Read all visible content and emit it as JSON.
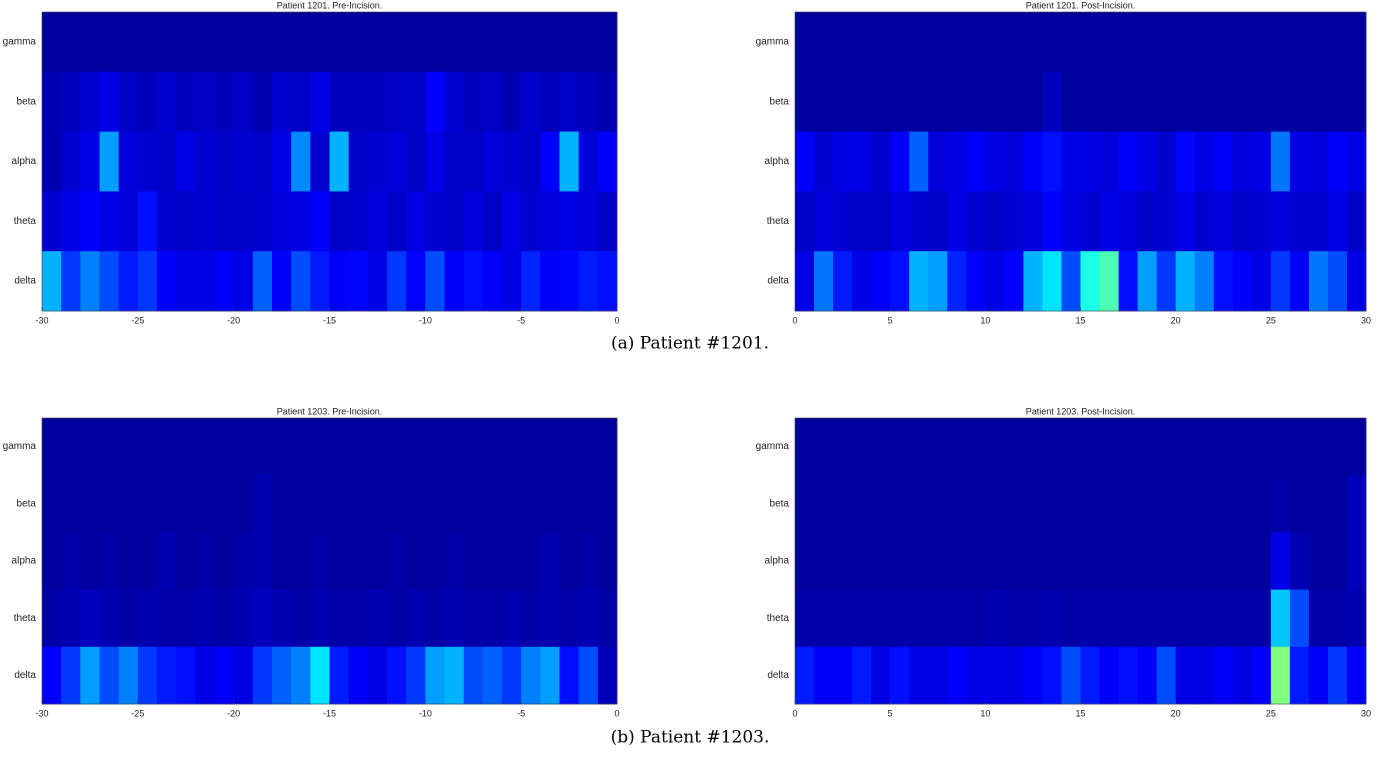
{
  "chart_data": [
    {
      "type": "heatmap",
      "title": "Patient 1201. Pre-Incision.",
      "colormap": "jet",
      "clim": [
        0,
        1
      ],
      "categories": [
        "gamma",
        "beta",
        "alpha",
        "theta",
        "delta"
      ],
      "xlim": [
        -30,
        0
      ],
      "xticks": [
        -30,
        -25,
        -20,
        -15,
        -10,
        -5,
        0
      ],
      "values": [
        [
          0.03,
          0.03,
          0.03,
          0.03,
          0.03,
          0.03,
          0.03,
          0.03,
          0.03,
          0.03,
          0.03,
          0.03,
          0.03,
          0.03,
          0.03,
          0.03,
          0.03,
          0.03,
          0.03,
          0.03,
          0.03,
          0.03,
          0.03,
          0.03,
          0.03,
          0.03,
          0.03,
          0.03,
          0.03,
          0.03
        ],
        [
          0.05,
          0.06,
          0.08,
          0.1,
          0.07,
          0.06,
          0.08,
          0.06,
          0.07,
          0.06,
          0.07,
          0.05,
          0.08,
          0.07,
          0.1,
          0.06,
          0.06,
          0.06,
          0.07,
          0.07,
          0.12,
          0.08,
          0.06,
          0.07,
          0.05,
          0.08,
          0.06,
          0.07,
          0.06,
          0.05
        ],
        [
          0.05,
          0.08,
          0.1,
          0.28,
          0.09,
          0.08,
          0.07,
          0.1,
          0.08,
          0.07,
          0.08,
          0.07,
          0.1,
          0.26,
          0.08,
          0.3,
          0.07,
          0.08,
          0.09,
          0.07,
          0.1,
          0.07,
          0.07,
          0.09,
          0.08,
          0.07,
          0.12,
          0.3,
          0.09,
          0.12
        ],
        [
          0.08,
          0.1,
          0.12,
          0.1,
          0.09,
          0.14,
          0.08,
          0.07,
          0.08,
          0.07,
          0.07,
          0.08,
          0.09,
          0.1,
          0.12,
          0.07,
          0.08,
          0.09,
          0.07,
          0.1,
          0.08,
          0.07,
          0.09,
          0.07,
          0.1,
          0.08,
          0.09,
          0.1,
          0.09,
          0.07
        ],
        [
          0.3,
          0.18,
          0.25,
          0.2,
          0.15,
          0.18,
          0.12,
          0.1,
          0.1,
          0.12,
          0.1,
          0.22,
          0.12,
          0.2,
          0.15,
          0.12,
          0.13,
          0.1,
          0.18,
          0.12,
          0.2,
          0.12,
          0.14,
          0.12,
          0.1,
          0.16,
          0.12,
          0.13,
          0.15,
          0.14
        ]
      ]
    },
    {
      "type": "heatmap",
      "title": "Patient 1201. Post-Incision.",
      "colormap": "jet",
      "clim": [
        0,
        1
      ],
      "categories": [
        "gamma",
        "beta",
        "alpha",
        "theta",
        "delta"
      ],
      "xlim": [
        0,
        30
      ],
      "xticks": [
        0,
        5,
        10,
        15,
        20,
        25,
        30
      ],
      "values": [
        [
          0.03,
          0.03,
          0.03,
          0.03,
          0.03,
          0.03,
          0.03,
          0.03,
          0.03,
          0.03,
          0.03,
          0.03,
          0.03,
          0.03,
          0.03,
          0.03,
          0.03,
          0.03,
          0.03,
          0.03,
          0.03,
          0.03,
          0.03,
          0.03,
          0.03,
          0.03,
          0.03,
          0.03,
          0.03,
          0.03
        ],
        [
          0.03,
          0.03,
          0.03,
          0.03,
          0.03,
          0.03,
          0.03,
          0.03,
          0.03,
          0.03,
          0.03,
          0.03,
          0.03,
          0.06,
          0.03,
          0.03,
          0.03,
          0.03,
          0.03,
          0.03,
          0.03,
          0.03,
          0.03,
          0.03,
          0.03,
          0.03,
          0.03,
          0.03,
          0.03,
          0.03
        ],
        [
          0.12,
          0.08,
          0.1,
          0.1,
          0.08,
          0.12,
          0.22,
          0.09,
          0.1,
          0.12,
          0.1,
          0.09,
          0.12,
          0.14,
          0.1,
          0.1,
          0.09,
          0.12,
          0.1,
          0.08,
          0.13,
          0.1,
          0.12,
          0.09,
          0.1,
          0.24,
          0.1,
          0.09,
          0.12,
          0.1
        ],
        [
          0.07,
          0.09,
          0.08,
          0.07,
          0.07,
          0.09,
          0.08,
          0.07,
          0.1,
          0.08,
          0.07,
          0.08,
          0.09,
          0.12,
          0.1,
          0.08,
          0.1,
          0.09,
          0.07,
          0.08,
          0.1,
          0.08,
          0.09,
          0.07,
          0.08,
          0.09,
          0.08,
          0.08,
          0.1,
          0.07
        ],
        [
          0.1,
          0.24,
          0.15,
          0.1,
          0.12,
          0.14,
          0.3,
          0.28,
          0.16,
          0.12,
          0.1,
          0.12,
          0.3,
          0.35,
          0.2,
          0.4,
          0.45,
          0.14,
          0.28,
          0.18,
          0.3,
          0.25,
          0.14,
          0.12,
          0.1,
          0.18,
          0.12,
          0.24,
          0.2,
          0.1
        ]
      ]
    },
    {
      "type": "heatmap",
      "title": "Patient 1203. Pre-Incision.",
      "colormap": "jet",
      "clim": [
        0,
        1
      ],
      "categories": [
        "gamma",
        "beta",
        "alpha",
        "theta",
        "delta"
      ],
      "xlim": [
        -30,
        0
      ],
      "xticks": [
        -30,
        -25,
        -20,
        -15,
        -10,
        -5,
        0
      ],
      "values": [
        [
          0.03,
          0.03,
          0.03,
          0.03,
          0.03,
          0.03,
          0.03,
          0.03,
          0.03,
          0.03,
          0.03,
          0.03,
          0.03,
          0.03,
          0.03,
          0.03,
          0.03,
          0.03,
          0.03,
          0.03,
          0.03,
          0.03,
          0.03,
          0.03,
          0.03,
          0.03,
          0.03,
          0.03,
          0.03,
          0.03
        ],
        [
          0.03,
          0.03,
          0.03,
          0.03,
          0.03,
          0.03,
          0.03,
          0.03,
          0.03,
          0.03,
          0.03,
          0.05,
          0.03,
          0.03,
          0.03,
          0.03,
          0.03,
          0.03,
          0.03,
          0.03,
          0.03,
          0.03,
          0.03,
          0.03,
          0.03,
          0.03,
          0.03,
          0.03,
          0.03,
          0.03
        ],
        [
          0.03,
          0.04,
          0.03,
          0.04,
          0.03,
          0.03,
          0.05,
          0.03,
          0.04,
          0.03,
          0.04,
          0.05,
          0.03,
          0.03,
          0.04,
          0.03,
          0.03,
          0.03,
          0.04,
          0.03,
          0.03,
          0.04,
          0.03,
          0.03,
          0.03,
          0.03,
          0.05,
          0.03,
          0.04,
          0.03
        ],
        [
          0.04,
          0.05,
          0.06,
          0.05,
          0.04,
          0.05,
          0.04,
          0.04,
          0.05,
          0.04,
          0.05,
          0.06,
          0.05,
          0.04,
          0.05,
          0.04,
          0.04,
          0.05,
          0.04,
          0.05,
          0.04,
          0.05,
          0.04,
          0.04,
          0.05,
          0.04,
          0.05,
          0.04,
          0.05,
          0.04
        ],
        [
          0.12,
          0.18,
          0.28,
          0.2,
          0.25,
          0.18,
          0.15,
          0.14,
          0.1,
          0.12,
          0.1,
          0.18,
          0.22,
          0.25,
          0.35,
          0.15,
          0.12,
          0.1,
          0.14,
          0.18,
          0.28,
          0.3,
          0.2,
          0.22,
          0.18,
          0.25,
          0.28,
          0.14,
          0.2,
          0.06
        ]
      ]
    },
    {
      "type": "heatmap",
      "title": "Patient 1203. Post-Incision.",
      "colormap": "jet",
      "clim": [
        0,
        1
      ],
      "categories": [
        "gamma",
        "beta",
        "alpha",
        "theta",
        "delta"
      ],
      "xlim": [
        0,
        30
      ],
      "xticks": [
        0,
        5,
        10,
        15,
        20,
        25,
        30
      ],
      "values": [
        [
          0.03,
          0.03,
          0.03,
          0.03,
          0.03,
          0.03,
          0.03,
          0.03,
          0.03,
          0.03,
          0.03,
          0.03,
          0.03,
          0.03,
          0.03,
          0.03,
          0.03,
          0.03,
          0.03,
          0.03,
          0.03,
          0.03,
          0.03,
          0.03,
          0.03,
          0.03,
          0.03,
          0.03,
          0.03,
          0.03
        ],
        [
          0.03,
          0.03,
          0.03,
          0.03,
          0.03,
          0.03,
          0.03,
          0.03,
          0.03,
          0.03,
          0.03,
          0.03,
          0.03,
          0.03,
          0.03,
          0.03,
          0.03,
          0.03,
          0.03,
          0.03,
          0.03,
          0.03,
          0.03,
          0.03,
          0.03,
          0.04,
          0.03,
          0.03,
          0.03,
          0.06
        ],
        [
          0.03,
          0.03,
          0.03,
          0.03,
          0.03,
          0.03,
          0.03,
          0.03,
          0.03,
          0.03,
          0.03,
          0.03,
          0.03,
          0.03,
          0.03,
          0.03,
          0.03,
          0.03,
          0.03,
          0.03,
          0.03,
          0.03,
          0.03,
          0.03,
          0.03,
          0.1,
          0.05,
          0.03,
          0.03,
          0.06
        ],
        [
          0.04,
          0.04,
          0.04,
          0.04,
          0.04,
          0.04,
          0.04,
          0.04,
          0.04,
          0.04,
          0.05,
          0.04,
          0.04,
          0.05,
          0.04,
          0.04,
          0.04,
          0.04,
          0.04,
          0.04,
          0.04,
          0.04,
          0.04,
          0.04,
          0.04,
          0.32,
          0.2,
          0.04,
          0.04,
          0.05
        ],
        [
          0.15,
          0.12,
          0.12,
          0.15,
          0.1,
          0.14,
          0.1,
          0.1,
          0.12,
          0.1,
          0.1,
          0.1,
          0.12,
          0.14,
          0.2,
          0.15,
          0.12,
          0.14,
          0.12,
          0.2,
          0.1,
          0.1,
          0.12,
          0.1,
          0.12,
          0.5,
          0.15,
          0.12,
          0.18,
          0.12
        ]
      ]
    }
  ],
  "captions": [
    "(a) Patient #1201.",
    "(b) Patient #1203."
  ]
}
